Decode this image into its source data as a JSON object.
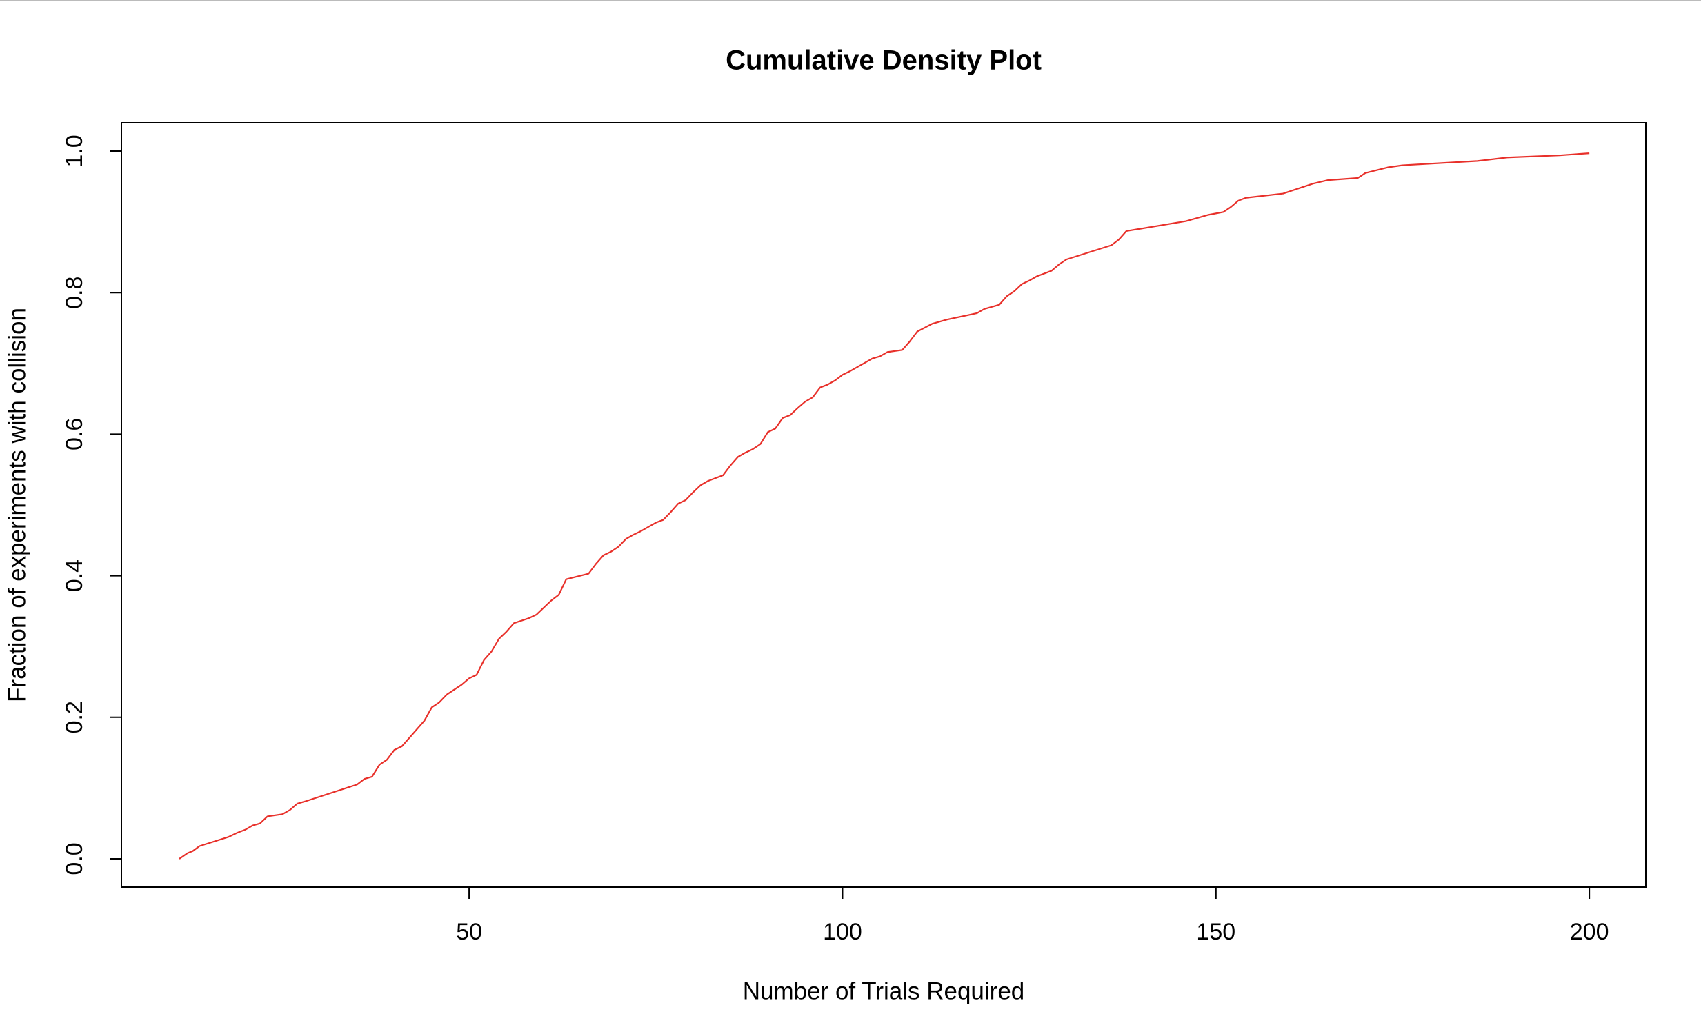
{
  "chart_data": {
    "type": "line",
    "title": "Cumulative Density Plot",
    "x_label": "Number of Trials Required",
    "y_label": "Fraction of experiments with collision",
    "color": "#e8302a",
    "x": [
      11.2,
      12.3,
      13,
      13.9,
      17.8,
      19,
      20,
      21,
      22,
      23,
      25,
      26,
      27,
      28,
      35,
      36,
      37,
      38,
      39,
      40,
      41,
      44,
      45,
      46,
      47,
      49,
      50,
      51,
      52,
      53,
      54,
      55,
      56,
      58,
      59,
      61,
      62,
      63,
      66,
      67,
      68,
      69,
      70,
      71,
      72,
      73,
      75,
      76,
      77,
      78,
      79,
      80,
      81,
      82,
      84,
      85,
      86,
      87,
      88,
      89,
      90,
      91,
      92,
      93,
      94,
      95,
      96,
      97,
      98,
      99,
      100,
      101,
      102,
      103,
      104,
      105,
      106,
      108,
      109,
      110,
      112,
      114,
      118,
      119,
      121,
      122,
      123,
      124,
      125,
      126,
      128,
      129,
      130,
      136,
      137,
      138,
      146,
      149,
      151,
      152,
      153,
      154,
      159,
      163,
      165,
      169,
      170,
      173,
      175,
      185,
      189,
      196,
      200
    ],
    "values": [
      0,
      0.008,
      0.011,
      0.018,
      0.031,
      0.037,
      0.041,
      0.047,
      0.05,
      0.06,
      0.063,
      0.069,
      0.078,
      0.081,
      0.105,
      0.113,
      0.116,
      0.133,
      0.14,
      0.154,
      0.159,
      0.195,
      0.214,
      0.221,
      0.232,
      0.246,
      0.255,
      0.26,
      0.281,
      0.293,
      0.311,
      0.321,
      0.333,
      0.34,
      0.345,
      0.365,
      0.373,
      0.395,
      0.403,
      0.417,
      0.429,
      0.434,
      0.441,
      0.452,
      0.458,
      0.463,
      0.475,
      0.479,
      0.49,
      0.502,
      0.507,
      0.518,
      0.528,
      0.534,
      0.542,
      0.556,
      0.568,
      0.574,
      0.579,
      0.586,
      0.603,
      0.608,
      0.623,
      0.627,
      0.637,
      0.646,
      0.652,
      0.666,
      0.67,
      0.676,
      0.684,
      0.689,
      0.695,
      0.701,
      0.707,
      0.71,
      0.716,
      0.719,
      0.731,
      0.745,
      0.756,
      0.762,
      0.771,
      0.777,
      0.783,
      0.795,
      0.802,
      0.812,
      0.817,
      0.823,
      0.831,
      0.84,
      0.847,
      0.867,
      0.875,
      0.887,
      0.901,
      0.91,
      0.914,
      0.921,
      0.93,
      0.934,
      0.94,
      0.954,
      0.959,
      0.962,
      0.969,
      0.977,
      0.98,
      0.986,
      0.991,
      0.994,
      0.997
    ],
    "xlim": [
      3.44,
      207.56
    ],
    "ylim": [
      -0.04,
      1.04
    ],
    "xticks": [
      50,
      100,
      150,
      200
    ],
    "yticks": [
      {
        "value": 0,
        "label": "0.0"
      },
      0.2,
      0.4,
      0.6,
      0.8,
      {
        "value": 1,
        "label": "1.0"
      }
    ],
    "grid": false
  }
}
